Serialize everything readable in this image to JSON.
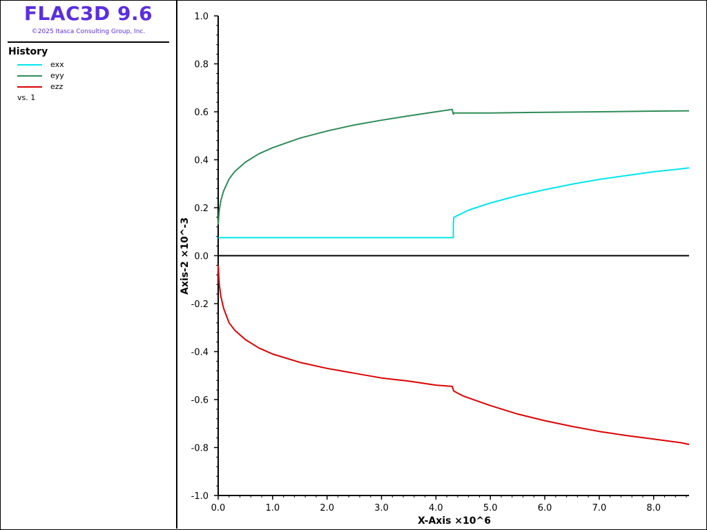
{
  "app": {
    "title": "FLAC3D 9.6",
    "copyright": "©2025 Itasca Consulting Group, Inc."
  },
  "legend": {
    "heading": "History",
    "items": [
      {
        "label": "exx",
        "color": "#00e5ee"
      },
      {
        "label": "eyy",
        "color": "#2e8b57"
      },
      {
        "label": "ezz",
        "color": "#dd0000"
      }
    ],
    "vs": "vs. 1"
  },
  "chart_data": {
    "type": "line",
    "xlabel": "X-Axis ×10^6",
    "ylabel": "Axis-2 ×10^-3",
    "xlim": [
      0,
      8.65
    ],
    "ylim": [
      -1.0,
      1.0
    ],
    "xticks": [
      "0.0",
      "1.0",
      "2.0",
      "3.0",
      "4.0",
      "5.0",
      "6.0",
      "7.0",
      "8.0"
    ],
    "yticks": [
      "-1.0",
      "-0.8",
      "-0.6",
      "-0.4",
      "-0.2",
      "0.0",
      "0.2",
      "0.4",
      "0.6",
      "0.8",
      "1.0"
    ],
    "zero_line": true,
    "grid": false,
    "series": [
      {
        "name": "exx",
        "color": "#00e5ee",
        "x": [
          0,
          4.32,
          4.32,
          4.33,
          4.6,
          5.0,
          5.5,
          6.0,
          6.5,
          7.0,
          7.5,
          8.0,
          8.5,
          8.65
        ],
        "y": [
          0.075,
          0.075,
          0.135,
          0.16,
          0.19,
          0.22,
          0.25,
          0.275,
          0.298,
          0.318,
          0.334,
          0.35,
          0.362,
          0.366
        ]
      },
      {
        "name": "eyy",
        "color": "#2e8b57",
        "x": [
          0,
          0.02,
          0.05,
          0.1,
          0.2,
          0.3,
          0.5,
          0.75,
          1.0,
          1.5,
          2.0,
          2.5,
          3.0,
          3.5,
          4.0,
          4.3,
          4.32,
          4.33,
          4.4,
          5.0,
          6.0,
          7.0,
          8.0,
          8.65
        ],
        "y": [
          0.13,
          0.19,
          0.23,
          0.27,
          0.32,
          0.35,
          0.39,
          0.425,
          0.45,
          0.49,
          0.52,
          0.545,
          0.565,
          0.583,
          0.6,
          0.61,
          0.59,
          0.595,
          0.595,
          0.595,
          0.598,
          0.6,
          0.603,
          0.604
        ]
      },
      {
        "name": "ezz",
        "color": "#dd0000",
        "x": [
          0,
          0.02,
          0.05,
          0.1,
          0.2,
          0.3,
          0.5,
          0.75,
          1.0,
          1.5,
          2.0,
          2.5,
          3.0,
          3.5,
          4.0,
          4.3,
          4.32,
          4.33,
          4.5,
          5.0,
          5.5,
          6.0,
          6.5,
          7.0,
          7.5,
          8.0,
          8.5,
          8.65
        ],
        "y": [
          -0.04,
          -0.12,
          -0.17,
          -0.22,
          -0.28,
          -0.31,
          -0.35,
          -0.385,
          -0.41,
          -0.445,
          -0.47,
          -0.49,
          -0.51,
          -0.523,
          -0.54,
          -0.545,
          -0.56,
          -0.565,
          -0.585,
          -0.625,
          -0.66,
          -0.688,
          -0.712,
          -0.733,
          -0.75,
          -0.765,
          -0.78,
          -0.787
        ]
      }
    ]
  }
}
